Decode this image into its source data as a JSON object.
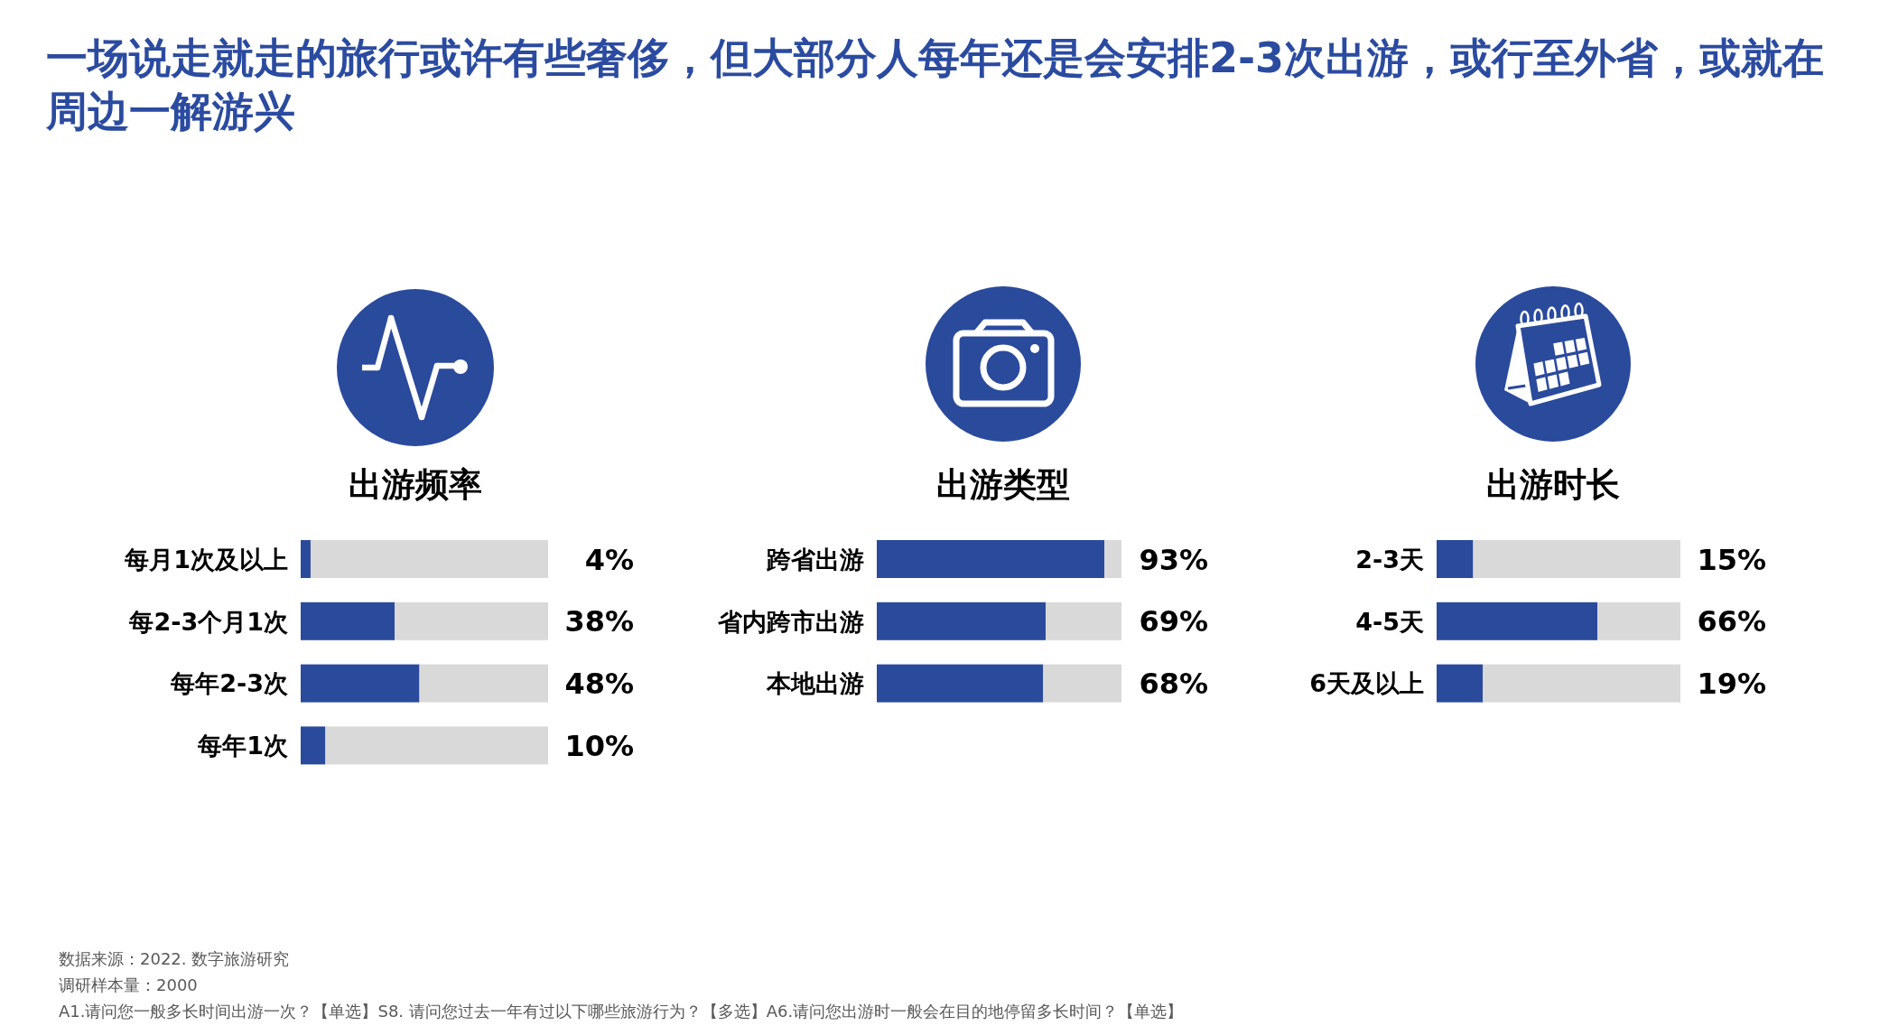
{
  "chart_data": [
    {
      "type": "other",
      "title": "一场说走就走的旅行或许有些奢侈，但大部分人每年还是会安排2-3次出游，或行至外省，或就在周边一解游兴"
    },
    {
      "type": "bar",
      "orientation": "horizontal",
      "stacked": true,
      "title": "出游频率",
      "categories": [
        "每月1次及以上",
        "每2-3个月1次",
        "每年2-3次",
        "每年1次"
      ],
      "series": [
        {
          "color": "#2a4a9c",
          "values": [
            4,
            38,
            48,
            10
          ],
          "value_labels": [
            "4%",
            "38%",
            "48%",
            "10%"
          ]
        },
        {
          "color": "#d9d9d9",
          "values": [
            96,
            62,
            52,
            90
          ]
        }
      ],
      "xlim": [
        0,
        100
      ],
      "tick_labels": "y"
    },
    {
      "type": "bar",
      "orientation": "horizontal",
      "stacked": true,
      "title": "出游类型",
      "categories": [
        "跨省出游",
        "省内跨市出游",
        "本地出游"
      ],
      "series": [
        {
          "color": "#2a4a9c",
          "values": [
            93,
            69,
            68
          ],
          "value_labels": [
            "93%",
            "69%",
            "68%"
          ]
        },
        {
          "color": "#d9d9d9",
          "values": [
            7,
            31,
            32
          ]
        }
      ],
      "xlim": [
        0,
        100
      ],
      "tick_labels": "y"
    },
    {
      "type": "bar",
      "orientation": "horizontal",
      "stacked": true,
      "title": "出游时长",
      "categories": [
        "2-3天",
        "4-5天",
        "6天及以上"
      ],
      "series": [
        {
          "color": "#2a4a9c",
          "values": [
            15,
            66,
            19
          ],
          "value_labels": [
            "15%",
            "66%",
            "19%"
          ]
        },
        {
          "color": "#d9d9d9",
          "values": [
            85,
            34,
            81
          ]
        }
      ],
      "xlim": [
        0,
        100
      ],
      "tick_labels": "y"
    },
    {
      "type": "other",
      "annotations": [
        "数据来源：2022. 数字旅游研究",
        "调研样本量：2000",
        "A1.请问您一般多长时间出游一次？【单选】S8. 请问您过去一年有过以下哪些旅游行为？【多选】A6.请问您出游时一般会在目的地停留多长时间？【单选】"
      ]
    }
  ]
}
